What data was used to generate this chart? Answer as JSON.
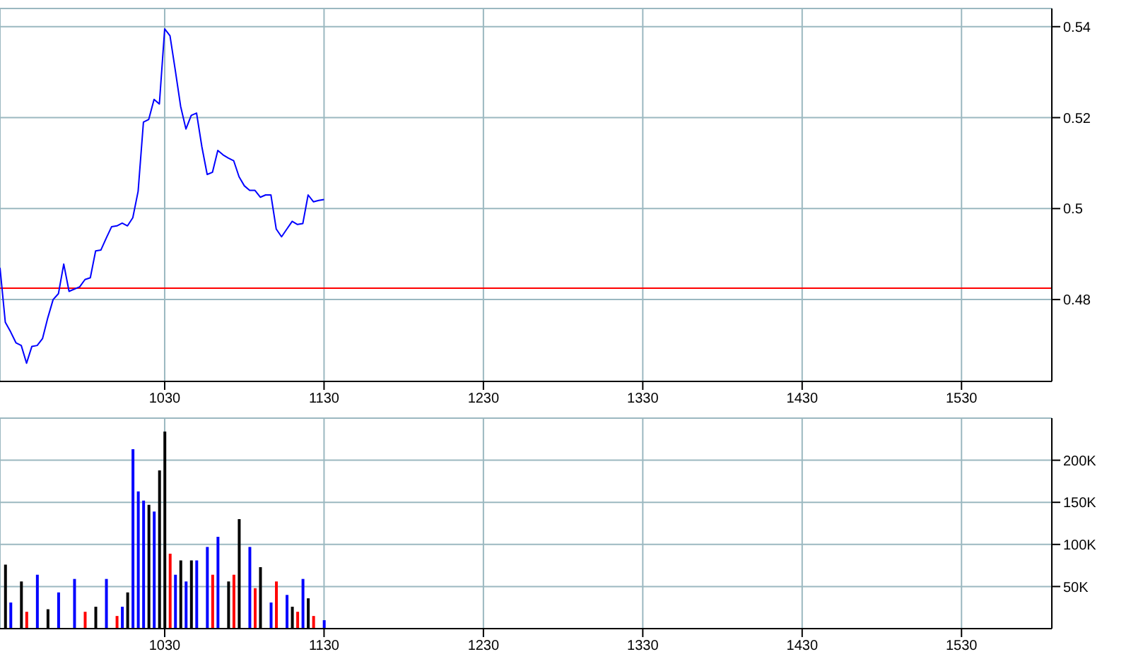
{
  "chart_data": [
    {
      "type": "line",
      "categories": [
        null,
        null,
        null,
        null,
        null,
        null,
        null,
        null,
        null,
        null,
        null,
        null,
        null,
        null,
        null,
        null,
        null,
        null,
        null,
        null,
        null,
        null,
        null,
        null,
        null,
        null,
        null,
        null,
        null,
        null,
        null,
        "1030",
        null,
        null,
        null,
        null,
        null,
        null,
        null,
        null,
        null,
        null,
        null,
        null,
        null,
        null,
        null,
        null,
        null,
        null,
        null,
        null,
        null,
        null,
        null,
        null,
        null,
        null,
        null,
        null,
        null,
        "1130",
        null,
        null,
        null,
        null,
        null,
        null,
        null,
        null,
        null,
        null,
        null,
        null,
        null,
        null,
        null,
        null,
        null,
        null,
        null,
        null,
        null,
        null,
        null,
        null,
        null,
        null,
        null,
        null,
        null,
        "1230",
        null,
        null,
        null,
        null,
        null,
        null,
        null,
        null,
        null,
        null,
        null,
        null,
        null,
        null,
        null,
        null,
        null,
        null,
        null,
        null,
        null,
        null,
        null,
        null,
        null,
        null,
        null,
        null,
        null,
        "1330",
        null,
        null,
        null,
        null,
        null,
        null,
        null,
        null,
        null,
        null,
        null,
        null,
        null,
        null,
        null,
        null,
        null,
        null,
        null,
        null,
        null,
        null,
        null,
        null,
        null,
        null,
        null,
        null,
        null,
        "1430",
        null,
        null,
        null,
        null,
        null,
        null,
        null,
        null,
        null,
        null,
        null,
        null,
        null,
        null,
        null,
        null,
        null,
        null,
        null,
        null,
        null,
        null,
        null,
        null,
        null,
        null,
        null,
        null,
        null,
        "1530",
        null,
        null,
        null,
        null,
        null,
        null,
        null,
        null,
        null,
        null,
        null,
        null,
        null,
        null,
        null,
        null,
        null
      ],
      "series": [
        {
          "color": "#0000ff",
          "values": [
            0.487,
            0.475,
            0.4729,
            0.4705,
            0.4699,
            0.466,
            0.4697,
            0.4699,
            0.4714,
            0.476,
            0.48,
            0.4813,
            0.4878,
            0.4818,
            0.4823,
            0.4828,
            0.4844,
            0.4848,
            0.4907,
            0.4909,
            0.4935,
            0.496,
            0.4962,
            0.4968,
            0.4962,
            0.498,
            0.5038,
            0.519,
            0.5196,
            0.524,
            0.523,
            0.5395,
            0.538,
            0.5304,
            0.5225,
            0.5175,
            0.5205,
            0.521,
            0.5136,
            0.5075,
            0.508,
            0.5128,
            0.5118,
            0.5111,
            0.5105,
            0.507,
            0.505,
            0.504,
            0.504,
            0.5025,
            0.503,
            0.503,
            0.4955,
            0.4938,
            0.4955,
            0.4972,
            0.4965,
            0.4967,
            0.503,
            0.5015,
            0.5018,
            0.502,
            null,
            null,
            null,
            null,
            null,
            null,
            null,
            null,
            null,
            null,
            null,
            null,
            null,
            null,
            null,
            null,
            null,
            null,
            null,
            null,
            null,
            null,
            null,
            null,
            null,
            null,
            null,
            null,
            null,
            null,
            null,
            null,
            null,
            null,
            null,
            null,
            null,
            null,
            null,
            null,
            null,
            null,
            null,
            null,
            null,
            null,
            null,
            null,
            null,
            null,
            null,
            null,
            null,
            null,
            null,
            null,
            null,
            null,
            null,
            null,
            null,
            null,
            null,
            null,
            null,
            null,
            null,
            null,
            null,
            null,
            null,
            null,
            null,
            null,
            null,
            null,
            null,
            null,
            null,
            null,
            null,
            null,
            null,
            null,
            null,
            null,
            null,
            null,
            null,
            null,
            null,
            null,
            null,
            null,
            null,
            null,
            null,
            null,
            null,
            null,
            null,
            null,
            null,
            null,
            null,
            null,
            null,
            null,
            null,
            null,
            null,
            null,
            null,
            null,
            null,
            null,
            null,
            null,
            null,
            null,
            null,
            null,
            null,
            null,
            null,
            null,
            null,
            null,
            null,
            null,
            null,
            null,
            null,
            null,
            null,
            null,
            null
          ]
        }
      ],
      "ylim": [
        0.462,
        0.544
      ],
      "yticks": [
        0.48,
        0.5,
        0.52,
        0.54
      ],
      "grid": true,
      "marker": "none",
      "ref_lines": [
        {
          "axis": "y",
          "value": 0.4825,
          "color": "#ff0000"
        }
      ]
    },
    {
      "type": "bar",
      "categories": [
        null,
        null,
        null,
        null,
        null,
        null,
        null,
        null,
        null,
        null,
        null,
        null,
        null,
        null,
        null,
        null,
        null,
        null,
        null,
        null,
        null,
        null,
        null,
        null,
        null,
        null,
        null,
        null,
        null,
        null,
        null,
        "1030",
        null,
        null,
        null,
        null,
        null,
        null,
        null,
        null,
        null,
        null,
        null,
        null,
        null,
        null,
        null,
        null,
        null,
        null,
        null,
        null,
        null,
        null,
        null,
        null,
        null,
        null,
        null,
        null,
        null,
        "1130",
        null,
        null,
        null,
        null,
        null,
        null,
        null,
        null,
        null,
        null,
        null,
        null,
        null,
        null,
        null,
        null,
        null,
        null,
        null,
        null,
        null,
        null,
        null,
        null,
        null,
        null,
        null,
        null,
        null,
        "1230",
        null,
        null,
        null,
        null,
        null,
        null,
        null,
        null,
        null,
        null,
        null,
        null,
        null,
        null,
        null,
        null,
        null,
        null,
        null,
        null,
        null,
        null,
        null,
        null,
        null,
        null,
        null,
        null,
        null,
        "1330",
        null,
        null,
        null,
        null,
        null,
        null,
        null,
        null,
        null,
        null,
        null,
        null,
        null,
        null,
        null,
        null,
        null,
        null,
        null,
        null,
        null,
        null,
        null,
        null,
        null,
        null,
        null,
        null,
        null,
        "1430",
        null,
        null,
        null,
        null,
        null,
        null,
        null,
        null,
        null,
        null,
        null,
        null,
        null,
        null,
        null,
        null,
        null,
        null,
        null,
        null,
        null,
        null,
        null,
        null,
        null,
        null,
        null,
        null,
        null,
        "1530",
        null,
        null,
        null,
        null,
        null,
        null,
        null,
        null,
        null,
        null,
        null,
        null,
        null,
        null,
        null,
        null,
        null
      ],
      "values": [
        null,
        76000,
        31000,
        null,
        56000,
        20000,
        null,
        64000,
        null,
        23000,
        null,
        43000,
        null,
        null,
        59000,
        null,
        20000,
        null,
        26000,
        null,
        59000,
        null,
        15000,
        26000,
        43000,
        213000,
        163000,
        152000,
        147000,
        139000,
        188000,
        234000,
        89000,
        64000,
        81000,
        56000,
        81000,
        81000,
        null,
        97000,
        64000,
        109000,
        null,
        56000,
        64000,
        130000,
        null,
        97000,
        48000,
        73000,
        null,
        31000,
        56000,
        null,
        40000,
        26000,
        20000,
        59000,
        36000,
        15000,
        null,
        10000,
        null,
        null,
        null,
        null,
        null,
        null,
        null,
        null,
        null,
        null,
        null,
        null,
        null,
        null,
        null,
        null,
        null,
        null,
        null,
        null,
        null,
        null,
        null,
        null,
        null,
        null,
        null,
        null,
        null,
        null,
        null,
        null,
        null,
        null,
        null,
        null,
        null,
        null,
        null,
        null,
        null,
        null,
        null,
        null,
        null,
        null,
        null,
        null,
        null,
        null,
        null,
        null,
        null,
        null,
        null,
        null,
        null,
        null,
        null,
        null,
        null,
        null,
        null,
        null,
        null,
        null,
        null,
        null,
        null,
        null,
        null,
        null,
        null,
        null,
        null,
        null,
        null,
        null,
        null,
        null,
        null,
        null,
        null,
        null,
        null,
        null,
        null,
        null,
        null,
        null,
        null,
        null,
        null,
        null,
        null,
        null,
        null,
        null,
        null,
        null,
        null,
        null,
        null,
        null,
        null,
        null,
        null,
        null,
        null,
        null,
        null,
        null,
        null,
        null,
        null,
        null,
        null,
        null,
        null,
        null,
        null,
        null,
        null,
        null,
        null,
        null,
        null,
        null,
        null,
        null,
        null,
        null,
        null,
        null,
        null,
        null,
        null
      ],
      "colors": [
        null,
        "#000000",
        "#0000ff",
        null,
        "#000000",
        "#ff0000",
        null,
        "#0000ff",
        null,
        "#000000",
        null,
        "#0000ff",
        null,
        null,
        "#0000ff",
        null,
        "#ff0000",
        null,
        "#000000",
        null,
        "#0000ff",
        null,
        "#ff0000",
        "#0000ff",
        "#000000",
        "#0000ff",
        "#0000ff",
        "#0000ff",
        "#000000",
        "#0000ff",
        "#000000",
        "#000000",
        "#ff0000",
        "#0000ff",
        "#000000",
        "#0000ff",
        "#000000",
        "#0000ff",
        null,
        "#0000ff",
        "#ff0000",
        "#0000ff",
        null,
        "#000000",
        "#ff0000",
        "#000000",
        null,
        "#0000ff",
        "#ff0000",
        "#000000",
        null,
        "#0000ff",
        "#ff0000",
        null,
        "#0000ff",
        "#000000",
        "#ff0000",
        "#0000ff",
        "#000000",
        "#ff0000",
        null,
        "#0000ff",
        null,
        null,
        null,
        null,
        null,
        null,
        null,
        null,
        null,
        null,
        null,
        null,
        null,
        null,
        null,
        null,
        null,
        null,
        null,
        null,
        null,
        null,
        null,
        null,
        null,
        null,
        null,
        null,
        null,
        null,
        null,
        null,
        null,
        null,
        null,
        null,
        null,
        null,
        null,
        null,
        null,
        null,
        null,
        null,
        null,
        null,
        null,
        null,
        null,
        null,
        null,
        null,
        null,
        null,
        null,
        null,
        null,
        null,
        null,
        null,
        null,
        null,
        null,
        null,
        null,
        null,
        null,
        null,
        null,
        null,
        null,
        null,
        null,
        null,
        null,
        null,
        null,
        null,
        null,
        null,
        null,
        null,
        null,
        null,
        null,
        null,
        null,
        null,
        null,
        null,
        null,
        null,
        null,
        null,
        null,
        null,
        null,
        null,
        null,
        null,
        null,
        null,
        null,
        null,
        null,
        null,
        null,
        null,
        null,
        null,
        null,
        null,
        null,
        null,
        null,
        null,
        null,
        null,
        null,
        null,
        null,
        null,
        null,
        null,
        null,
        null,
        null,
        null,
        null,
        null,
        null,
        null,
        null,
        null,
        null,
        null,
        null
      ],
      "ylim": [
        0,
        250000
      ],
      "yticks": [
        {
          "value": 50000,
          "label": "50K"
        },
        {
          "value": 100000,
          "label": "100K"
        },
        {
          "value": 150000,
          "label": "150K"
        },
        {
          "value": 200000,
          "label": "200K"
        }
      ],
      "grid": true
    }
  ]
}
